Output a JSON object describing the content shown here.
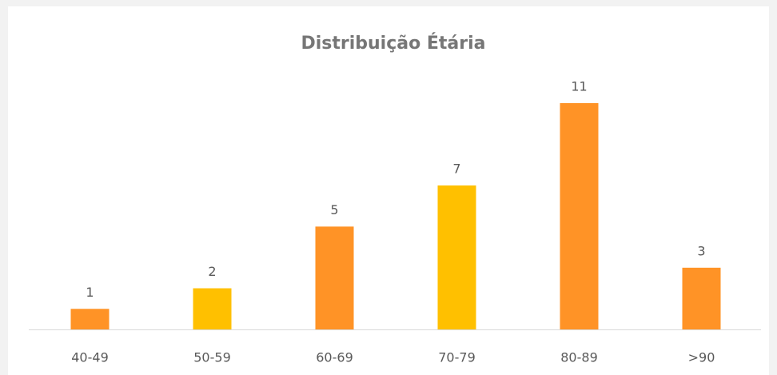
{
  "chart_data": {
    "type": "bar",
    "title": "Distribuição Étária",
    "categories": [
      "40-49",
      "50-59",
      "60-69",
      "70-79",
      "80-89",
      ">90"
    ],
    "values": [
      1,
      2,
      5,
      7,
      11,
      3
    ],
    "colors": [
      "#ff9326",
      "#ffc000",
      "#ff9326",
      "#ffc000",
      "#ff9326",
      "#ff9326"
    ]
  }
}
